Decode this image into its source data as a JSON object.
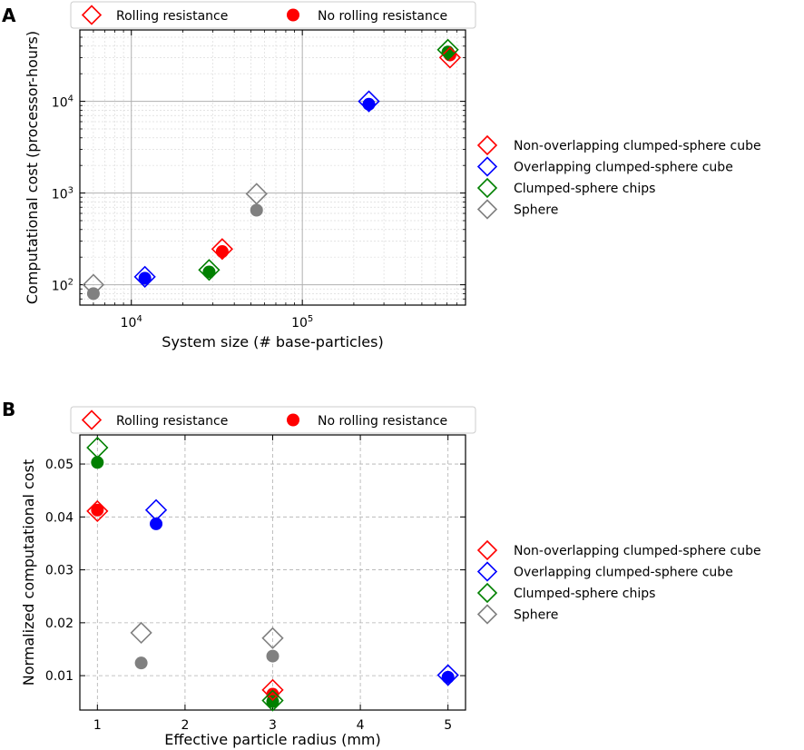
{
  "chart_data": [
    {
      "type": "scatter",
      "panel": "A",
      "xscale": "log",
      "yscale": "log",
      "xlabel": "System size (# base-particles)",
      "ylabel": "Computational cost (processor-hours)",
      "xlim": [
        5000,
        900000
      ],
      "ylim": [
        60,
        60000
      ],
      "xticks": [
        {
          "value": 10000,
          "base": "10",
          "exp": "4"
        },
        {
          "value": 100000,
          "base": "10",
          "exp": "5"
        }
      ],
      "yticks": [
        {
          "value": 100,
          "base": "10",
          "exp": "2"
        },
        {
          "value": 1000,
          "base": "10",
          "exp": "3"
        },
        {
          "value": 10000,
          "base": "10",
          "exp": "4"
        }
      ],
      "marker_legend": [
        {
          "label": "Rolling resistance",
          "marker": "diamond"
        },
        {
          "label": "No rolling resistance",
          "marker": "circle"
        }
      ],
      "color_legend": [
        {
          "label": "Non-overlapping clumped-sphere cube",
          "color": "#ff0000"
        },
        {
          "label": "Overlapping clumped-sphere cube",
          "color": "#0000ff"
        },
        {
          "label": "Clumped-sphere chips",
          "color": "#008000"
        },
        {
          "label": "Sphere",
          "color": "#808080"
        }
      ],
      "series": [
        {
          "name": "Non-overlapping clumped-sphere cube",
          "color": "#ff0000",
          "rolling": [
            {
              "x": 34000,
              "y": 245
            },
            {
              "x": 730000,
              "y": 30000
            }
          ],
          "no_rolling": [
            {
              "x": 34000,
              "y": 230
            },
            {
              "x": 730000,
              "y": 32000
            }
          ]
        },
        {
          "name": "Overlapping clumped-sphere cube",
          "color": "#0000ff",
          "rolling": [
            {
              "x": 12000,
              "y": 122
            },
            {
              "x": 245000,
              "y": 10000
            }
          ],
          "no_rolling": [
            {
              "x": 12000,
              "y": 118
            },
            {
              "x": 245000,
              "y": 9300
            }
          ]
        },
        {
          "name": "Clumped-sphere chips",
          "color": "#008000",
          "rolling": [
            {
              "x": 28500,
              "y": 145
            },
            {
              "x": 710000,
              "y": 36500
            }
          ],
          "no_rolling": [
            {
              "x": 28500,
              "y": 138
            },
            {
              "x": 710000,
              "y": 34500
            }
          ]
        },
        {
          "name": "Sphere",
          "color": "#808080",
          "rolling": [
            {
              "x": 6000,
              "y": 100
            },
            {
              "x": 54000,
              "y": 980
            }
          ],
          "no_rolling": [
            {
              "x": 6000,
              "y": 80
            },
            {
              "x": 54000,
              "y": 650
            }
          ]
        }
      ]
    },
    {
      "type": "scatter",
      "panel": "B",
      "xscale": "linear",
      "yscale": "linear",
      "xlabel": "Effective particle radius (mm)",
      "ylabel": "Normalized computational cost",
      "xlim": [
        0.8,
        5.2
      ],
      "ylim": [
        0.0035,
        0.0555
      ],
      "xticks": [
        {
          "value": 1,
          "label": "1"
        },
        {
          "value": 2,
          "label": "2"
        },
        {
          "value": 3,
          "label": "3"
        },
        {
          "value": 4,
          "label": "4"
        },
        {
          "value": 5,
          "label": "5"
        }
      ],
      "yticks": [
        {
          "value": 0.01,
          "label": "0.01"
        },
        {
          "value": 0.02,
          "label": "0.02"
        },
        {
          "value": 0.03,
          "label": "0.03"
        },
        {
          "value": 0.04,
          "label": "0.04"
        },
        {
          "value": 0.05,
          "label": "0.05"
        }
      ],
      "marker_legend": [
        {
          "label": "Rolling resistance",
          "marker": "diamond"
        },
        {
          "label": "No rolling resistance",
          "marker": "circle"
        }
      ],
      "color_legend": [
        {
          "label": "Non-overlapping clumped-sphere cube",
          "color": "#ff0000"
        },
        {
          "label": "Overlapping clumped-sphere cube",
          "color": "#0000ff"
        },
        {
          "label": "Clumped-sphere chips",
          "color": "#008000"
        },
        {
          "label": "Sphere",
          "color": "#808080"
        }
      ],
      "series": [
        {
          "name": "Non-overlapping clumped-sphere cube",
          "color": "#ff0000",
          "rolling": [
            {
              "x": 1.0,
              "y": 0.0411
            },
            {
              "x": 3.0,
              "y": 0.0073
            }
          ],
          "no_rolling": [
            {
              "x": 1.0,
              "y": 0.0413
            },
            {
              "x": 3.0,
              "y": 0.0065
            }
          ]
        },
        {
          "name": "Overlapping clumped-sphere cube",
          "color": "#0000ff",
          "rolling": [
            {
              "x": 1.67,
              "y": 0.0413
            },
            {
              "x": 5.0,
              "y": 0.0101
            }
          ],
          "no_rolling": [
            {
              "x": 1.67,
              "y": 0.0387
            },
            {
              "x": 5.0,
              "y": 0.0097
            }
          ]
        },
        {
          "name": "Clumped-sphere chips",
          "color": "#008000",
          "rolling": [
            {
              "x": 1.0,
              "y": 0.0531
            },
            {
              "x": 3.0,
              "y": 0.0053
            }
          ],
          "no_rolling": [
            {
              "x": 1.0,
              "y": 0.0503
            },
            {
              "x": 3.0,
              "y": 0.0051
            }
          ]
        },
        {
          "name": "Sphere",
          "color": "#808080",
          "rolling": [
            {
              "x": 1.5,
              "y": 0.0181
            },
            {
              "x": 3.0,
              "y": 0.0171
            }
          ],
          "no_rolling": [
            {
              "x": 1.5,
              "y": 0.0124
            },
            {
              "x": 3.0,
              "y": 0.0137
            }
          ]
        }
      ]
    }
  ],
  "panels": [
    {
      "label": "A"
    },
    {
      "label": "B"
    }
  ]
}
